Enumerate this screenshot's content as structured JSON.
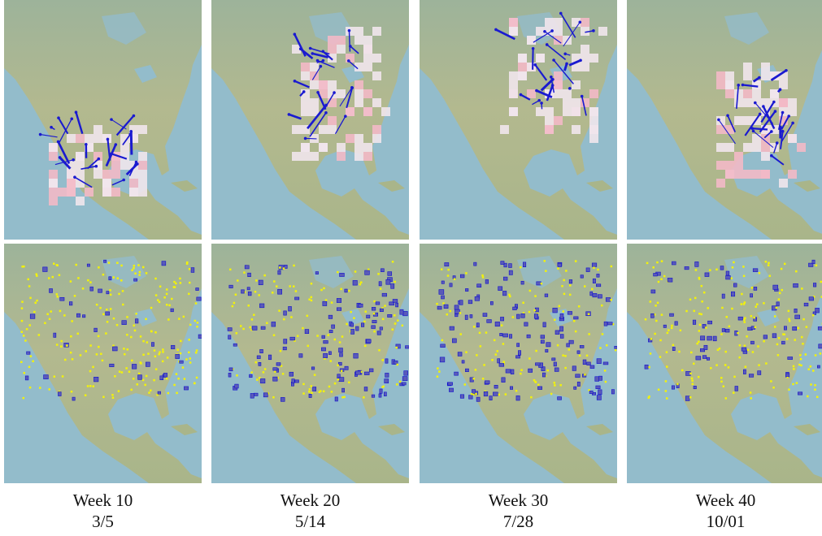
{
  "panels": [
    {
      "week": "Week 10",
      "date": "3/5"
    },
    {
      "week": "Week 20",
      "date": "5/14"
    },
    {
      "week": "Week 30",
      "date": "7/28"
    },
    {
      "week": "Week 40",
      "date": "10/01"
    }
  ]
}
